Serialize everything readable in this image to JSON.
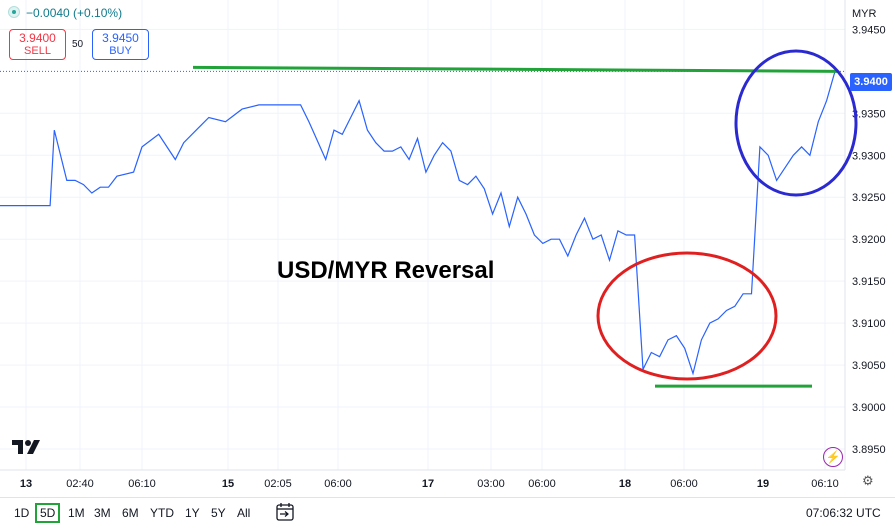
{
  "header": {
    "change": "−0.0040 (+0.10%)",
    "sell_price": "3.9400",
    "sell_label": "SELL",
    "spread": "50",
    "buy_price": "3.9450",
    "buy_label": "BUY"
  },
  "currency": "MYR",
  "current_price": "3.9400",
  "annotation": "USD/MYR Reversal",
  "toolbar": {
    "ranges": [
      "1D",
      "5D",
      "1M",
      "3M",
      "6M",
      "YTD",
      "1Y",
      "5Y",
      "All"
    ],
    "active_range": "5D",
    "clock": "07:06:32 UTC"
  },
  "colors": {
    "line": "#2962ff",
    "support_resistance": "#22a33a",
    "circle_red": "#e02020",
    "circle_blue": "#2a2ad0"
  },
  "chart_data": {
    "type": "line",
    "title": "",
    "xlabel": "",
    "ylabel": "",
    "y_ticks": [
      "3.9450",
      "3.9350",
      "3.9300",
      "3.9250",
      "3.9200",
      "3.9150",
      "3.9100",
      "3.9050",
      "3.9000",
      "3.8950"
    ],
    "ylim": [
      3.8925,
      3.9485
    ],
    "x_ticks": [
      {
        "label": "13",
        "bold": true
      },
      {
        "label": "02:40",
        "bold": false
      },
      {
        "label": "06:10",
        "bold": false
      },
      {
        "label": "15",
        "bold": true
      },
      {
        "label": "02:05",
        "bold": false
      },
      {
        "label": "06:00",
        "bold": false
      },
      {
        "label": "17",
        "bold": true
      },
      {
        "label": "03:00",
        "bold": false
      },
      {
        "label": "06:00",
        "bold": false
      },
      {
        "label": "18",
        "bold": true
      },
      {
        "label": "06:00",
        "bold": false
      },
      {
        "label": "19",
        "bold": true
      },
      {
        "label": "06:10",
        "bold": false
      }
    ],
    "resistance": 3.94,
    "support": 3.9025,
    "series": [
      {
        "name": "",
        "x": [
          0,
          3,
          6,
          6.5,
          8,
          9,
          10,
          11,
          12,
          13,
          14,
          16,
          17,
          19,
          21,
          22,
          24,
          25,
          27,
          29,
          31,
          32,
          33,
          35,
          36,
          37,
          39,
          40,
          41,
          42,
          43,
          44,
          45,
          46,
          47,
          48,
          49,
          50,
          51,
          52,
          53,
          54,
          55,
          56,
          57,
          58,
          59,
          60,
          61,
          62,
          63,
          64,
          65,
          66,
          67,
          68,
          69,
          70,
          71,
          72,
          73,
          74,
          75,
          76,
          77,
          78,
          79,
          80,
          81,
          82,
          83,
          84,
          85,
          86,
          87,
          88,
          89,
          90,
          91,
          92,
          93,
          94,
          95,
          96,
          97,
          98,
          99,
          100
        ],
        "values": [
          3.924,
          3.924,
          3.924,
          3.933,
          3.927,
          3.927,
          3.9265,
          3.9255,
          3.9262,
          3.9262,
          3.9275,
          3.928,
          3.931,
          3.9325,
          3.9295,
          3.9315,
          3.9335,
          3.9345,
          3.934,
          3.9355,
          3.936,
          3.936,
          3.936,
          3.936,
          3.936,
          3.934,
          3.9295,
          3.933,
          3.9325,
          3.9345,
          3.9365,
          3.933,
          3.9315,
          3.9305,
          3.9305,
          3.931,
          3.9295,
          3.932,
          3.928,
          3.93,
          3.9315,
          3.9305,
          3.927,
          3.9265,
          3.9275,
          3.926,
          3.923,
          3.9255,
          3.9215,
          3.925,
          3.923,
          3.9205,
          3.9195,
          3.92,
          3.92,
          3.918,
          3.9205,
          3.9225,
          3.92,
          3.9205,
          3.9175,
          3.921,
          3.9205,
          3.9205,
          3.9045,
          3.9065,
          3.906,
          3.908,
          3.9085,
          3.907,
          3.904,
          3.908,
          3.91,
          3.9105,
          3.9115,
          3.912,
          3.9135,
          3.9135,
          3.931,
          3.93,
          3.927,
          3.9285,
          3.93,
          3.931,
          3.93,
          3.934,
          3.9365,
          3.94
        ]
      }
    ]
  }
}
